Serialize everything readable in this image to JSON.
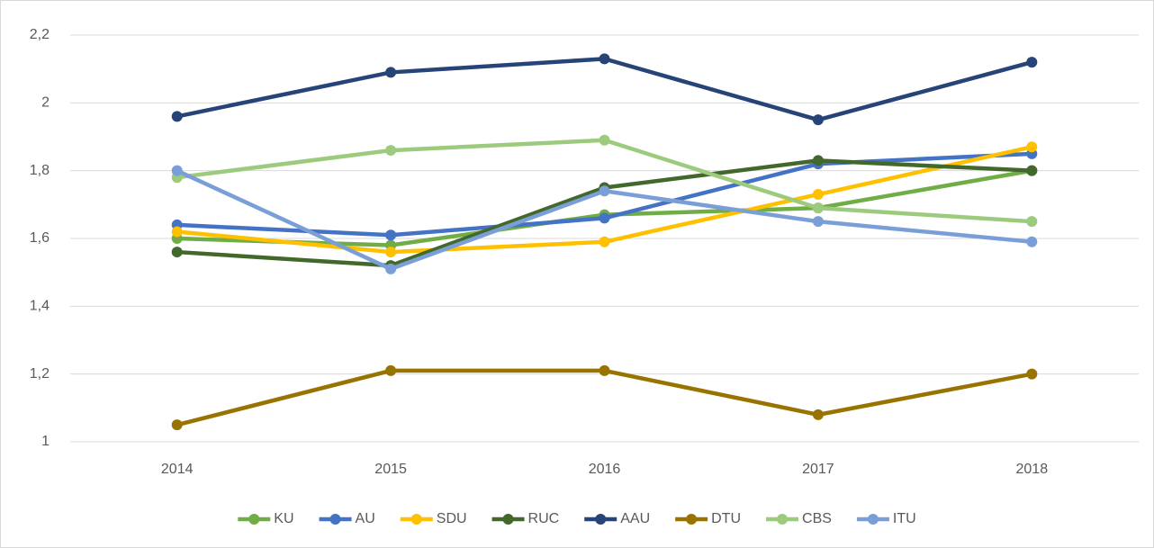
{
  "chart_data": {
    "type": "line",
    "x": [
      2014,
      2015,
      2016,
      2017,
      2018
    ],
    "xlim": [
      2013.5,
      2018.5
    ],
    "ylim": [
      1,
      2.2
    ],
    "yticks": [
      1,
      {
        "value": 1.2,
        "label": "1,2"
      },
      {
        "value": 1.4,
        "label": "1,4"
      },
      {
        "value": 1.6,
        "label": "1,6"
      },
      {
        "value": 1.8,
        "label": "1,8"
      },
      2,
      {
        "value": 2.2,
        "label": "2,2"
      }
    ],
    "grid": true,
    "legend": "bottom",
    "series": [
      {
        "name": "KU",
        "color": "#70ad47",
        "values": [
          1.6,
          1.58,
          1.67,
          1.69,
          1.8
        ]
      },
      {
        "name": "AU",
        "color": "#4472c4",
        "values": [
          1.64,
          1.61,
          1.66,
          1.82,
          1.85
        ]
      },
      {
        "name": "SDU",
        "color": "#ffc000",
        "values": [
          1.62,
          1.56,
          1.59,
          1.73,
          1.87
        ]
      },
      {
        "name": "RUC",
        "color": "#43682b",
        "values": [
          1.56,
          1.52,
          1.75,
          1.83,
          1.8
        ]
      },
      {
        "name": "AAU",
        "color": "#264478",
        "values": [
          1.96,
          2.09,
          2.13,
          1.95,
          2.12
        ]
      },
      {
        "name": "DTU",
        "color": "#997300",
        "values": [
          1.05,
          1.21,
          1.21,
          1.08,
          1.2
        ]
      },
      {
        "name": "CBS",
        "color": "#9dcb7d",
        "values": [
          1.78,
          1.86,
          1.89,
          1.69,
          1.65
        ]
      },
      {
        "name": "ITU",
        "color": "#7a9fd8",
        "values": [
          1.8,
          1.51,
          1.74,
          1.65,
          1.59
        ]
      }
    ]
  }
}
